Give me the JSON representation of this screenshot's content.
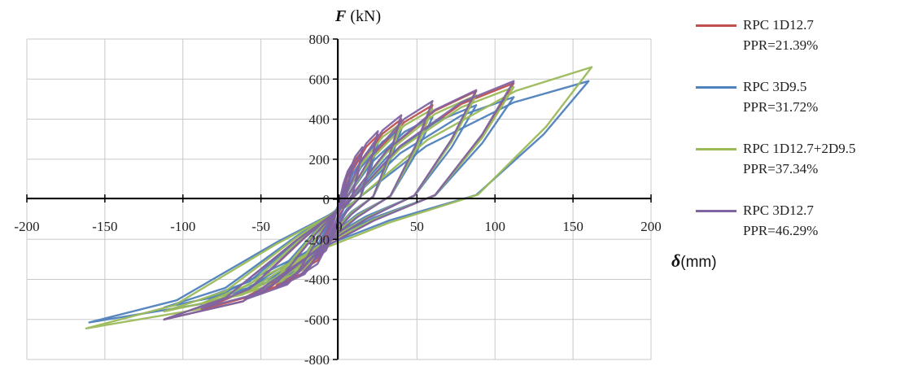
{
  "chart_data": {
    "type": "line",
    "xlabel": {
      "symbol": "δ",
      "unit": "(mm)"
    },
    "ylabel": {
      "symbol": "F",
      "unit": " (kN)"
    },
    "xlim": [
      -200,
      200
    ],
    "ylim": [
      -800,
      800
    ],
    "xticks": [
      -200,
      -150,
      -100,
      -50,
      0,
      50,
      100,
      150,
      200
    ],
    "yticks": [
      800,
      600,
      400,
      200,
      0,
      -200,
      -400,
      -600,
      -800
    ],
    "grid": true,
    "legend_position": "right",
    "series": [
      {
        "name_line1": "RPC 1D12.7",
        "name_line2": "PPR=21.39%",
        "color": "#c0504d",
        "loops": [
          {
            "amp": 112,
            "top": 580,
            "bot": -600
          },
          {
            "amp": 88,
            "top": 540,
            "bot": -550
          },
          {
            "amp": 60,
            "top": 470,
            "bot": -490
          },
          {
            "amp": 40,
            "top": 400,
            "bot": -430
          },
          {
            "amp": 25,
            "top": 320,
            "bot": -360
          },
          {
            "amp": 15,
            "top": 240,
            "bot": -270
          }
        ]
      },
      {
        "name_line1": "RPC 3D9.5",
        "name_line2": "PPR=31.72%",
        "color": "#4f81bd",
        "loops": [
          {
            "amp": 160,
            "top": 590,
            "bot": -615
          },
          {
            "amp": 112,
            "top": 510,
            "bot": -540
          },
          {
            "amp": 88,
            "top": 470,
            "bot": -500
          },
          {
            "amp": 60,
            "top": 410,
            "bot": -450
          },
          {
            "amp": 40,
            "top": 350,
            "bot": -400
          },
          {
            "amp": 25,
            "top": 280,
            "bot": -330
          }
        ]
      },
      {
        "name_line1": "RPC 1D12.7+2D9.5",
        "name_line2": "PPR=37.34%",
        "color": "#9bbb59",
        "loops": [
          {
            "amp": 162,
            "top": 660,
            "bot": -645
          },
          {
            "amp": 112,
            "top": 560,
            "bot": -560
          },
          {
            "amp": 88,
            "top": 520,
            "bot": -520
          },
          {
            "amp": 60,
            "top": 450,
            "bot": -470
          },
          {
            "amp": 40,
            "top": 380,
            "bot": -410
          }
        ]
      },
      {
        "name_line1": "RPC 3D12.7",
        "name_line2": "PPR=46.29%",
        "color": "#8064a2",
        "loops": [
          {
            "amp": 112,
            "top": 590,
            "bot": -600
          },
          {
            "amp": 88,
            "top": 545,
            "bot": -545
          },
          {
            "amp": 60,
            "top": 490,
            "bot": -500
          },
          {
            "amp": 40,
            "top": 420,
            "bot": -440
          },
          {
            "amp": 25,
            "top": 340,
            "bot": -380
          },
          {
            "amp": 15,
            "top": 260,
            "bot": -300
          },
          {
            "amp": 8,
            "top": 170,
            "bot": -210
          }
        ]
      }
    ]
  }
}
